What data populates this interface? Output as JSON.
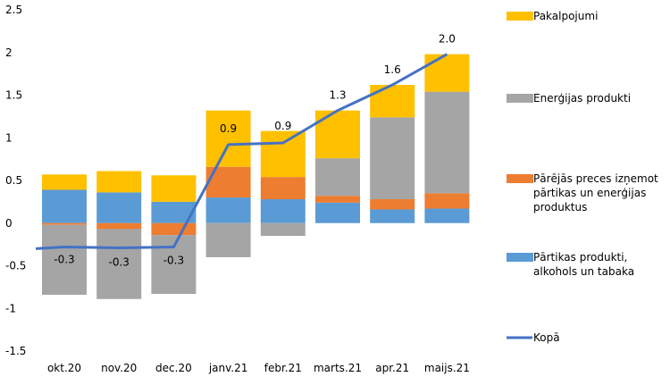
{
  "chart_data": {
    "type": "bar",
    "stacked": true,
    "categories": [
      "okt.20",
      "nov.20",
      "dec.20",
      "janv.21",
      "febr.21",
      "marts.21",
      "apr.21",
      "maijs.21"
    ],
    "ylim": [
      -1.5,
      2.5
    ],
    "yticks": [
      "-1.5",
      "-1",
      "-0.5",
      "0",
      "0.5",
      "1",
      "1.5",
      "2",
      "2.5"
    ],
    "ytick_values": [
      -1.5,
      -1,
      -0.5,
      0,
      0.5,
      1,
      1.5,
      2,
      2.5
    ],
    "grid": false,
    "legend_position": "right",
    "series": [
      {
        "name": "Pārtikas produkti, alkohols un tabaka",
        "name_lines": [
          "Pārtikas produkti,",
          "alkohols un tabaka"
        ],
        "color": "#5B9BD5",
        "values": [
          0.39,
          0.36,
          0.25,
          0.3,
          0.28,
          0.24,
          0.16,
          0.17
        ]
      },
      {
        "name": "Pārējās preces izņemot pārtikas un enerģijas produktus",
        "name_lines": [
          "Pārējās preces izņemot",
          "pārtikas un enerģijas",
          "produktus"
        ],
        "color": "#ED7D31",
        "values": [
          -0.02,
          -0.07,
          -0.14,
          0.36,
          0.26,
          0.08,
          0.12,
          0.18
        ]
      },
      {
        "name": "Enerģijas produkti",
        "name_lines": [
          "Enerģijas produkti"
        ],
        "color": "#A5A5A5",
        "values": [
          -0.82,
          -0.82,
          -0.69,
          -0.4,
          -0.15,
          0.44,
          0.96,
          1.19
        ]
      },
      {
        "name": "Pakalpojumi",
        "name_lines": [
          "Pakalpojumi"
        ],
        "color": "#FFC000",
        "values": [
          0.18,
          0.25,
          0.31,
          0.66,
          0.54,
          0.56,
          0.38,
          0.44
        ]
      }
    ],
    "line": {
      "name": "Kopā",
      "color": "#4472C4",
      "lead_in": -0.3,
      "values": [
        -0.28,
        -0.29,
        -0.28,
        0.92,
        0.94,
        1.32,
        1.62,
        1.98
      ],
      "labels": [
        "-0.3",
        "-0.3",
        "-0.3",
        "0.9",
        "0.9",
        "1.3",
        "1.6",
        "2.0"
      ]
    },
    "legend_order": [
      3,
      2,
      1,
      0,
      "line"
    ]
  }
}
